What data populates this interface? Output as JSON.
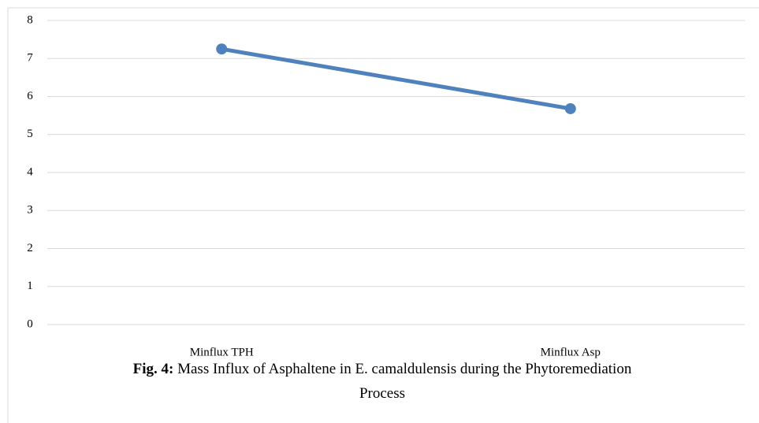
{
  "chart_data": {
    "type": "line",
    "caption": {
      "label": "Fig. 4:",
      "text": "Mass Influx of Asphaltene in E. camaldulensis during the Phytoremediation Process"
    },
    "categories": [
      "Minflux TPH",
      "Minflux Asp"
    ],
    "values": [
      7.25,
      5.68
    ],
    "color": "#4f81bd",
    "ylim": [
      0,
      8
    ],
    "yticks": [
      0,
      1,
      2,
      3,
      4,
      5,
      6,
      7,
      8
    ],
    "grid": true
  }
}
